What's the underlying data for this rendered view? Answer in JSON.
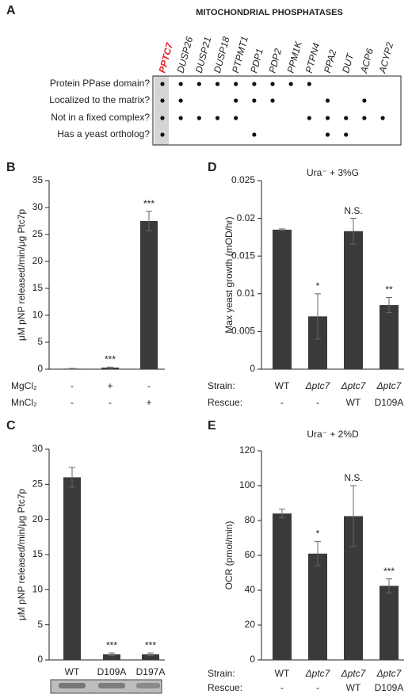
{
  "panel_a": {
    "label": "A",
    "title": "MITOCHONDRIAL PHOSPHATASES",
    "columns": [
      "PPTC7",
      "DUSP26",
      "DUSP21",
      "DUSP18",
      "PTPMT1",
      "PDP1",
      "PDP2",
      "PPM1K",
      "PTPN4",
      "PPA2",
      "DUT",
      "ACP6",
      "ACYP2"
    ],
    "highlight_color": "#e8202a",
    "rows": [
      {
        "label": "Protein PPase domain?",
        "marks": [
          true,
          true,
          true,
          true,
          true,
          true,
          true,
          true,
          true,
          false,
          false,
          false,
          false
        ]
      },
      {
        "label": "Localized to the matrix?",
        "marks": [
          true,
          true,
          false,
          false,
          true,
          true,
          true,
          false,
          false,
          true,
          false,
          true,
          false
        ]
      },
      {
        "label": "Not in a fixed complex?",
        "marks": [
          true,
          true,
          true,
          true,
          true,
          false,
          false,
          false,
          true,
          true,
          true,
          true,
          true
        ]
      },
      {
        "label": "Has a yeast ortholog?",
        "marks": [
          true,
          false,
          false,
          false,
          false,
          true,
          false,
          false,
          false,
          true,
          true,
          false,
          false
        ]
      }
    ]
  },
  "chart_data": [
    {
      "type": "bar",
      "label": "B",
      "ylabel": "μM pNP released/min/μg Ptc7p",
      "color": "#3a3a3a",
      "category_rows": [
        {
          "label": "MgCl₂",
          "values": [
            "-",
            "+",
            "-"
          ]
        },
        {
          "label": "MnCl₂",
          "values": [
            "-",
            "-",
            "+"
          ]
        }
      ],
      "values": [
        0.1,
        0.3,
        27.5
      ],
      "errors": [
        0.05,
        0.1,
        1.8
      ],
      "annotations": [
        null,
        "***",
        "***"
      ],
      "ylim": [
        0,
        35
      ],
      "yticks": [
        0,
        5,
        10,
        15,
        20,
        25,
        30,
        35
      ]
    },
    {
      "type": "bar",
      "label": "D",
      "title": "Ura⁻ + 3%G",
      "ylabel": "Max yeast growth (mOD/hr)",
      "color": "#3a3a3a",
      "category_rows": [
        {
          "label": "Strain:",
          "values": [
            "WT",
            "Δptc7",
            "Δptc7",
            "Δptc7"
          ]
        },
        {
          "label": "Rescue:",
          "values": [
            "-",
            "-",
            "WT",
            "D109A"
          ]
        }
      ],
      "values": [
        0.0185,
        0.007,
        0.0183,
        0.0085
      ],
      "errors": [
        0.0001,
        0.003,
        0.0017,
        0.001
      ],
      "annotations": [
        null,
        "*",
        "N.S.",
        "**"
      ],
      "ylim": [
        0,
        0.025
      ],
      "yticks": [
        0,
        0.005,
        0.01,
        0.015,
        0.02,
        0.025
      ]
    },
    {
      "type": "bar",
      "label": "C",
      "ylabel": "μM pNP released/min/μg Ptc7p",
      "color": "#3a3a3a",
      "categories": [
        "WT",
        "D109A",
        "D197A"
      ],
      "values": [
        26,
        0.8,
        0.8
      ],
      "errors": [
        1.4,
        0.2,
        0.2
      ],
      "annotations": [
        null,
        "***",
        "***"
      ],
      "ylim": [
        0,
        30
      ],
      "yticks": [
        0,
        5,
        10,
        15,
        20,
        25,
        30
      ]
    },
    {
      "type": "bar",
      "label": "E",
      "title": "Ura⁻ + 2%D",
      "ylabel": "OCR (pmol/min)",
      "color": "#3a3a3a",
      "category_rows": [
        {
          "label": "Strain:",
          "values": [
            "WT",
            "Δptc7",
            "Δptc7",
            "Δptc7"
          ]
        },
        {
          "label": "Rescue:",
          "values": [
            "-",
            "-",
            "WT",
            "D109A"
          ]
        }
      ],
      "values": [
        84,
        61,
        82.5,
        42.5
      ],
      "errors": [
        2.5,
        7,
        17.5,
        4
      ],
      "annotations": [
        null,
        "*",
        "N.S.",
        "***"
      ],
      "ylim": [
        0,
        120
      ],
      "yticks": [
        0,
        20,
        40,
        60,
        80,
        100,
        120
      ]
    }
  ]
}
